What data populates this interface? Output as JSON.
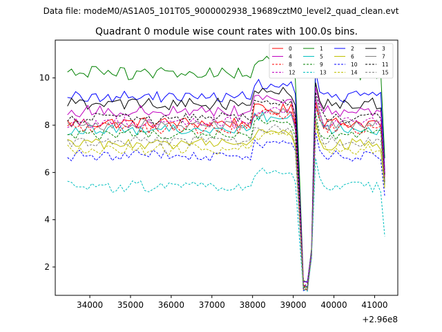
{
  "chart_data": {
    "type": "line",
    "suptitle": "Data file: modeM0/AS1A05_101T05_9000002938_19689cztM0_level2_quad_clean.evt",
    "title": "Quadrant 0 module wise count rates with 100.0s bins.",
    "xlabel": "",
    "ylabel": "",
    "x_offset_label": "+2.96e8",
    "xlim": [
      33150,
      41570
    ],
    "ylim": [
      0.8,
      11.6
    ],
    "x_ticks": [
      34000,
      35000,
      36000,
      37000,
      38000,
      39000,
      40000,
      41000
    ],
    "y_ticks": [
      2,
      4,
      6,
      8,
      10
    ],
    "x_start": 33450,
    "x_step": 100,
    "n_points": 79,
    "legend_location": "upper-right",
    "legend_columns": 4,
    "series": [
      {
        "name": "0",
        "color": "#ff0000",
        "dash": "solid",
        "level": 8.1,
        "dip": 1.1,
        "spike": 9.0,
        "wiggle": 0.25,
        "end": 5.8
      },
      {
        "name": "1",
        "color": "#008000",
        "dash": "solid",
        "level": 10.2,
        "dip": 1.3,
        "spike": 10.8,
        "wiggle": 0.3,
        "end": 6.6
      },
      {
        "name": "2",
        "color": "#0000ff",
        "dash": "solid",
        "level": 9.2,
        "dip": 1.2,
        "spike": 10.3,
        "wiggle": 0.25,
        "end": 6.1
      },
      {
        "name": "3",
        "color": "#000000",
        "dash": "solid",
        "level": 8.9,
        "dip": 1.0,
        "spike": 9.8,
        "wiggle": 0.25,
        "end": 5.9
      },
      {
        "name": "4",
        "color": "#bf00bf",
        "dash": "solid",
        "level": 8.6,
        "dip": 1.2,
        "spike": 9.6,
        "wiggle": 0.25,
        "end": 6.0
      },
      {
        "name": "5",
        "color": "#00bfbf",
        "dash": "solid",
        "level": 7.8,
        "dip": 1.1,
        "spike": 8.8,
        "wiggle": 0.22,
        "end": 5.6
      },
      {
        "name": "6",
        "color": "#bfbf00",
        "dash": "solid",
        "level": 7.2,
        "dip": 1.0,
        "spike": 8.2,
        "wiggle": 0.25,
        "end": 5.4
      },
      {
        "name": "7",
        "color": "#808080",
        "dash": "solid",
        "level": 8.0,
        "dip": 1.1,
        "spike": 9.2,
        "wiggle": 0.22,
        "end": 5.7
      },
      {
        "name": "8",
        "color": "#ff0000",
        "dash": "dashed",
        "level": 7.9,
        "dip": 1.0,
        "spike": 8.8,
        "wiggle": 0.25,
        "end": 5.6
      },
      {
        "name": "9",
        "color": "#008000",
        "dash": "dashed",
        "level": 7.6,
        "dip": 1.1,
        "spike": 8.5,
        "wiggle": 0.22,
        "end": 5.5
      },
      {
        "name": "10",
        "color": "#0000ff",
        "dash": "dashed",
        "level": 6.7,
        "dip": 0.9,
        "spike": 7.7,
        "wiggle": 0.25,
        "end": 5.0
      },
      {
        "name": "11",
        "color": "#000000",
        "dash": "dashed",
        "level": 8.3,
        "dip": 1.0,
        "spike": 9.4,
        "wiggle": 0.25,
        "end": 5.9
      },
      {
        "name": "12",
        "color": "#bf00bf",
        "dash": "dashed",
        "level": 8.1,
        "dip": 1.1,
        "spike": 9.1,
        "wiggle": 0.25,
        "end": 5.8
      },
      {
        "name": "13",
        "color": "#00bfbf",
        "dash": "dashed",
        "level": 5.4,
        "dip": 0.9,
        "spike": 6.6,
        "wiggle": 0.25,
        "end": 3.3
      },
      {
        "name": "14",
        "color": "#bfbf00",
        "dash": "dashed",
        "level": 7.0,
        "dip": 1.0,
        "spike": 8.0,
        "wiggle": 0.25,
        "end": 5.3
      },
      {
        "name": "15",
        "color": "#808080",
        "dash": "dashed",
        "level": 7.3,
        "dip": 1.0,
        "spike": 8.2,
        "wiggle": 0.22,
        "end": 5.5
      }
    ]
  }
}
